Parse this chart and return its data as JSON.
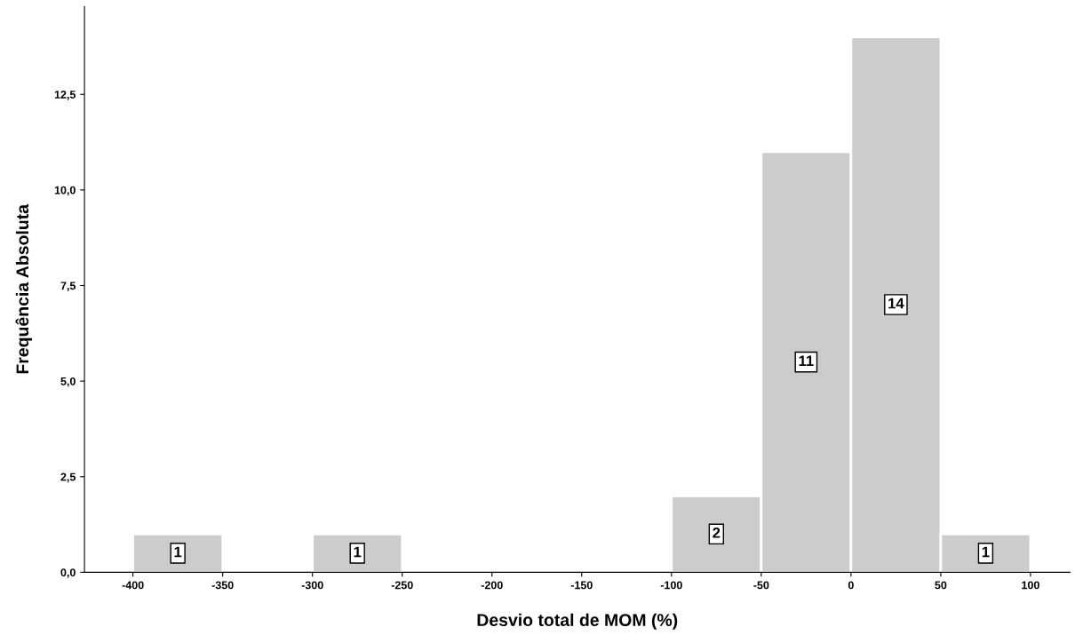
{
  "chart_data": {
    "type": "histogram",
    "xlabel": "Desvio total de MOM (%)",
    "ylabel": "Frequência Absoluta",
    "bins": [
      -400,
      -350,
      -300,
      -250,
      -200,
      -150,
      -100,
      -50,
      0,
      50,
      100
    ],
    "values": [
      1,
      0,
      1,
      0,
      0,
      0,
      2,
      11,
      14,
      1
    ],
    "value_labels": [
      "1",
      null,
      "1",
      null,
      null,
      null,
      "2",
      "11",
      "14",
      "1"
    ],
    "color": "#cccccc",
    "xlim": [
      -427,
      122
    ],
    "xticks": [
      -400,
      -350,
      -300,
      -250,
      -200,
      -150,
      -100,
      -50,
      0,
      50,
      100
    ],
    "ylim": [
      0,
      14.8
    ],
    "yticks": [
      {
        "value": 0,
        "label": "0,0"
      },
      {
        "value": 2.5,
        "label": "2,5"
      },
      {
        "value": 5,
        "label": "5,0"
      },
      {
        "value": 7.5,
        "label": "7,5"
      },
      {
        "value": 10,
        "label": "10,0"
      },
      {
        "value": 12.5,
        "label": "12,5"
      }
    ],
    "grid": false
  }
}
